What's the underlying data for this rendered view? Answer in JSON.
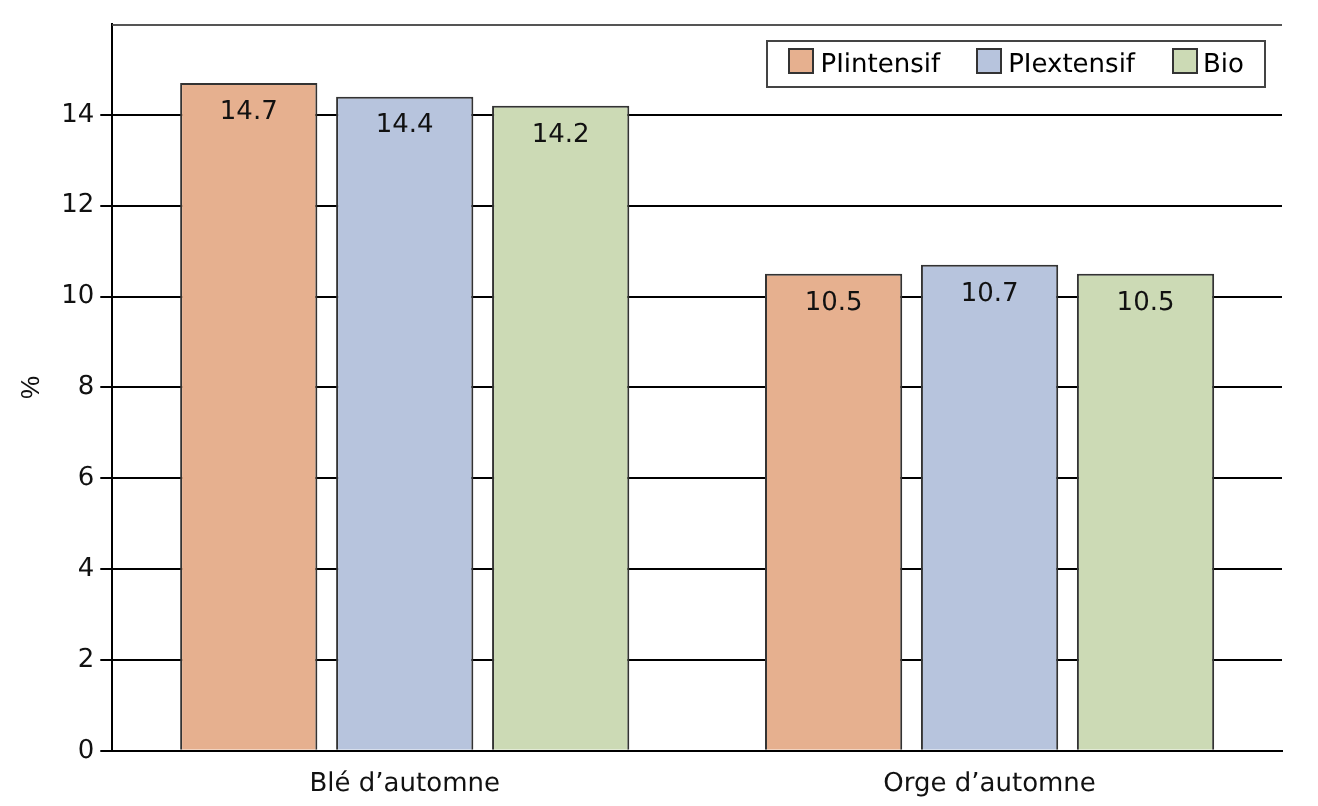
{
  "chart_data": {
    "type": "bar",
    "ylabel": "%",
    "categories": [
      "Blé d’automne",
      "Orge d’automne"
    ],
    "series": [
      {
        "name": "PIintensif",
        "color": "#e6b08f",
        "values": [
          14.7,
          10.5
        ]
      },
      {
        "name": "PIextensif",
        "color": "#b7c4dd",
        "values": [
          14.4,
          10.7
        ]
      },
      {
        "name": "Bio",
        "color": "#ccdab5",
        "values": [
          14.2,
          10.5
        ]
      }
    ],
    "ylim": [
      0,
      16
    ],
    "yticks": [
      0,
      2,
      4,
      6,
      8,
      10,
      12,
      14
    ],
    "grid": "y",
    "legend": "top right",
    "data_labels": true
  }
}
